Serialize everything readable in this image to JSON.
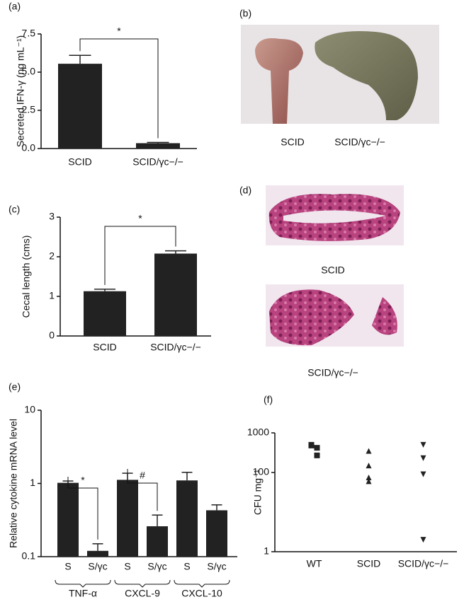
{
  "chart_data": [
    {
      "type": "bar",
      "panel_label": "(a)",
      "ylabel": "Secreted IFN-γ (ng mL⁻¹)",
      "categories": [
        "SCID",
        "SCID/γc−/−"
      ],
      "values": [
        5.55,
        0.35
      ],
      "errors": [
        0.55,
        0.05
      ],
      "color": "#222222",
      "ylim": [
        0,
        7.5
      ],
      "yticks": [
        {
          "value": 0,
          "label": "0.0"
        },
        2.5,
        {
          "value": 5,
          "label": "5.0"
        },
        7.5
      ],
      "annotations": [
        "*"
      ]
    },
    {
      "type": "bar",
      "panel_label": "(c)",
      "ylabel": "Cecal length (cms)",
      "categories": [
        "SCID",
        "SCID/γc−/−"
      ],
      "values": [
        1.13,
        2.08
      ],
      "errors": [
        0.05,
        0.07
      ],
      "color": "#222222",
      "ylim": [
        0,
        3
      ],
      "yticks": [
        0,
        1,
        2,
        3
      ],
      "annotations": [
        "*"
      ]
    },
    {
      "type": "bar",
      "panel_label": "(e)",
      "ylabel": "Relative cytokine mRNA level",
      "categories": [
        "S",
        "S/γc",
        "S",
        "S/γc",
        "S",
        "S/γc"
      ],
      "groups": [
        "TNF-α",
        "CXCL-9",
        "CXCL-10"
      ],
      "values": [
        1.02,
        0.12,
        1.12,
        0.26,
        1.1,
        0.43
      ],
      "errors": [
        0.06,
        0.03,
        0.26,
        0.11,
        0.32,
        0.08
      ],
      "color": "#222222",
      "log_scale": true,
      "ylim": [
        0.1,
        10
      ],
      "yticks": [
        0.1,
        1,
        10
      ],
      "annotations": [
        "*",
        "#"
      ]
    },
    {
      "type": "scatter",
      "panel_label": "(f)",
      "ylabel": "CFU mg⁻¹",
      "categories": [
        "WT",
        "SCID",
        "SCID/γc−/−"
      ],
      "values": [
        [
          500,
          420,
          480,
          270
        ],
        [
          350,
          150,
          75,
          60
        ],
        [
          500,
          230,
          90,
          2
        ]
      ],
      "markers": [
        "square",
        "triangle-up",
        "triangle-down"
      ],
      "color": "#222222",
      "log_scale": true,
      "ylim": [
        1,
        1000
      ],
      "yticks": [
        1,
        100,
        1000
      ]
    }
  ],
  "image_panels": [
    {
      "panel_label": "(b)",
      "labels": [
        "SCID",
        "SCID/γc−/−"
      ]
    },
    {
      "panel_label": "(d)",
      "labels": [
        "SCID",
        "SCID/γc−/−"
      ]
    }
  ]
}
